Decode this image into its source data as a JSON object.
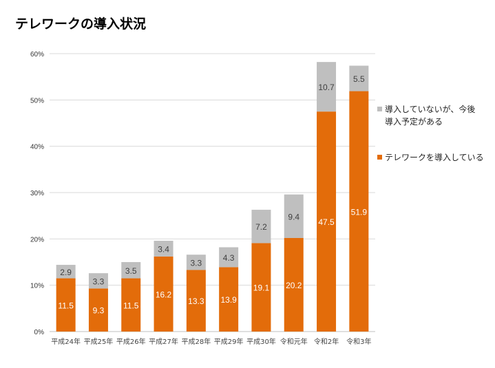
{
  "title": "テレワークの導入状況",
  "chart_data": {
    "type": "bar",
    "stacked": true,
    "title": "テレワークの導入状況",
    "categories": [
      "平成24年",
      "平成25年",
      "平成26年",
      "平成27年",
      "平成28年",
      "平成29年",
      "平成30年",
      "令和元年",
      "令和2年",
      "令和3年"
    ],
    "series": [
      {
        "name": "テレワークを導入している",
        "color": "#e36c0a",
        "values": [
          11.5,
          9.3,
          11.5,
          16.2,
          13.3,
          13.9,
          19.1,
          20.2,
          47.5,
          51.9
        ]
      },
      {
        "name": "導入していないが、今後導入予定がある",
        "color": "#bfbfbf",
        "values": [
          2.9,
          3.3,
          3.5,
          3.4,
          3.3,
          4.3,
          7.2,
          9.4,
          10.7,
          5.5
        ]
      }
    ],
    "yticks": [
      "0%",
      "10%",
      "20%",
      "30%",
      "40%",
      "50%",
      "60%"
    ],
    "ylim": [
      0,
      60
    ],
    "legend": "right"
  },
  "legend": {
    "planned_line1": "導入していないが、今後",
    "planned_line2": "導入予定がある",
    "adopted": "テレワークを導入している"
  }
}
